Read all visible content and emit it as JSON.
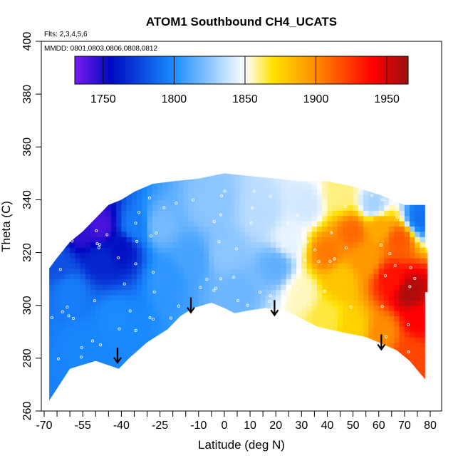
{
  "chart_data": {
    "type": "heatmap",
    "title": "ATOM1 Southbound CH4_UCATS",
    "notes": [
      "Flts: 2,3,4,5,6",
      "MMDD: 0801,0803,0806,0808,0812"
    ],
    "xlabel": "Latitude (deg N)",
    "ylabel": "Theta (C)",
    "xlim": [
      -70,
      85
    ],
    "ylim": [
      260,
      400
    ],
    "x_major_ticks": [
      -70,
      -55,
      -40,
      -25,
      -10,
      0,
      10,
      20,
      30,
      40,
      50,
      60,
      70,
      80
    ],
    "x_minor_ticks": [
      -65,
      -60,
      -50,
      -45,
      -35,
      -30,
      -20,
      -15,
      -5,
      5,
      15,
      25,
      35,
      45,
      55,
      65,
      75
    ],
    "y_ticks": [
      260,
      280,
      300,
      320,
      340,
      360,
      380,
      400
    ],
    "colorbar": {
      "min": 1730,
      "max": 1965,
      "ticks": [
        1750,
        1800,
        1850,
        1900,
        1950
      ],
      "colors": [
        "#7a1cf0",
        "#0008c0",
        "#1a8cff",
        "#ffffff",
        "#ffe000",
        "#ff8c00",
        "#ff0000",
        "#9a1010"
      ]
    },
    "arrows": [
      {
        "lat": -41.5,
        "theta": 284
      },
      {
        "lat": -13,
        "theta": 303
      },
      {
        "lat": 19.5,
        "theta": 302
      },
      {
        "lat": 61,
        "theta": 289
      }
    ],
    "bottom_boundary": [
      [
        -68,
        264
      ],
      [
        -60,
        276
      ],
      [
        -50,
        279
      ],
      [
        -41,
        276
      ],
      [
        -37,
        280
      ],
      [
        -30,
        286
      ],
      [
        -22,
        291
      ],
      [
        -17,
        296
      ],
      [
        -12,
        299
      ],
      [
        -5,
        301
      ],
      [
        0,
        299
      ],
      [
        4,
        297
      ],
      [
        9,
        298
      ],
      [
        16,
        299
      ],
      [
        24,
        298
      ],
      [
        30,
        295
      ],
      [
        36,
        292
      ],
      [
        45,
        290
      ],
      [
        55,
        288
      ],
      [
        60,
        286
      ],
      [
        67,
        283
      ],
      [
        72,
        279
      ],
      [
        78,
        272
      ]
    ],
    "top_boundary": [
      [
        78,
        272
      ],
      [
        78,
        305
      ],
      [
        79,
        305
      ],
      [
        79,
        320
      ],
      [
        78,
        325
      ],
      [
        78,
        338
      ],
      [
        70,
        338
      ],
      [
        60,
        342
      ],
      [
        50,
        345
      ],
      [
        40,
        347
      ],
      [
        30,
        347
      ],
      [
        20,
        348
      ],
      [
        10,
        349
      ],
      [
        0,
        350
      ],
      [
        -10,
        348
      ],
      [
        -20,
        347
      ],
      [
        -28,
        346
      ],
      [
        -35,
        343
      ],
      [
        -40,
        340
      ],
      [
        -45,
        338
      ],
      [
        -50,
        333
      ],
      [
        -55,
        328
      ],
      [
        -60,
        324
      ],
      [
        -65,
        318
      ],
      [
        -68,
        314
      ],
      [
        -68,
        264
      ]
    ],
    "anchors": [
      {
        "lat": -65,
        "theta": 316,
        "value": 1780
      },
      {
        "lat": -55,
        "theta": 328,
        "value": 1745
      },
      {
        "lat": -48,
        "theta": 330,
        "value": 1740
      },
      {
        "lat": -40,
        "theta": 322,
        "value": 1758
      },
      {
        "lat": -48,
        "theta": 318,
        "value": 1765
      },
      {
        "lat": -60,
        "theta": 305,
        "value": 1795
      },
      {
        "lat": -55,
        "theta": 285,
        "value": 1798
      },
      {
        "lat": -42,
        "theta": 295,
        "value": 1800
      },
      {
        "lat": -35,
        "theta": 330,
        "value": 1795
      },
      {
        "lat": -25,
        "theta": 330,
        "value": 1820
      },
      {
        "lat": -22,
        "theta": 310,
        "value": 1805
      },
      {
        "lat": -12,
        "theta": 318,
        "value": 1810
      },
      {
        "lat": -5,
        "theta": 338,
        "value": 1825
      },
      {
        "lat": 0,
        "theta": 320,
        "value": 1825
      },
      {
        "lat": 5,
        "theta": 305,
        "value": 1818
      },
      {
        "lat": 15,
        "theta": 335,
        "value": 1835
      },
      {
        "lat": 20,
        "theta": 315,
        "value": 1815
      },
      {
        "lat": 25,
        "theta": 325,
        "value": 1845
      },
      {
        "lat": 30,
        "theta": 305,
        "value": 1855
      },
      {
        "lat": 32,
        "theta": 338,
        "value": 1840
      },
      {
        "lat": 40,
        "theta": 320,
        "value": 1905
      },
      {
        "lat": 45,
        "theta": 310,
        "value": 1880
      },
      {
        "lat": 50,
        "theta": 328,
        "value": 1910
      },
      {
        "lat": 55,
        "theta": 318,
        "value": 1895
      },
      {
        "lat": 60,
        "theta": 330,
        "value": 1890
      },
      {
        "lat": 65,
        "theta": 310,
        "value": 1935
      },
      {
        "lat": 72,
        "theta": 305,
        "value": 1960
      },
      {
        "lat": 68,
        "theta": 325,
        "value": 1915
      },
      {
        "lat": 75,
        "theta": 295,
        "value": 1940
      },
      {
        "lat": 72,
        "theta": 282,
        "value": 1920
      },
      {
        "lat": 62,
        "theta": 290,
        "value": 1900
      },
      {
        "lat": 50,
        "theta": 292,
        "value": 1875
      },
      {
        "lat": 40,
        "theta": 295,
        "value": 1865
      },
      {
        "lat": 76,
        "theta": 333,
        "value": 1790
      },
      {
        "lat": 58,
        "theta": 338,
        "value": 1830
      },
      {
        "lat": 45,
        "theta": 342,
        "value": 1860
      }
    ]
  }
}
